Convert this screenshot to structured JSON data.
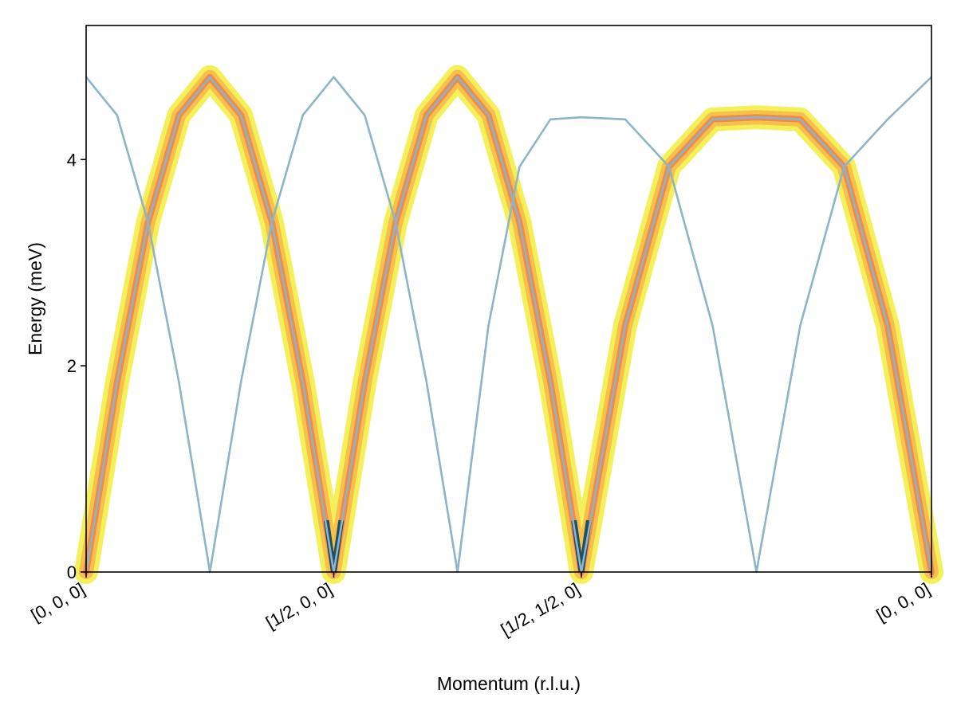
{
  "chart_data": {
    "type": "line",
    "title": "",
    "xlabel": "Momentum (r.l.u.)",
    "ylabel": "Energy (meV)",
    "ylim": [
      0,
      5.3
    ],
    "xlim": [
      0,
      3.414
    ],
    "yticks": [
      0,
      2,
      4
    ],
    "xticks": [
      {
        "value": 0,
        "label": "[0, 0, 0]"
      },
      {
        "value": 1,
        "label": "[1/2, 0, 0]"
      },
      {
        "value": 2,
        "label": "[1/2, 1/2, 0]"
      },
      {
        "value": 3.414,
        "label": "[0, 0, 0]"
      }
    ],
    "grid": false,
    "legend": "none",
    "series": [
      {
        "x": [
          0,
          0.125,
          0.25,
          0.375,
          0.5,
          0.625,
          0.75,
          0.875,
          1.0,
          1.125,
          1.25,
          1.375,
          1.5,
          1.625,
          1.75,
          1.875,
          2.0,
          2.177,
          2.354,
          2.53,
          2.707,
          2.884,
          3.061,
          3.237,
          3.414
        ],
        "y": [
          0,
          1.84,
          3.39,
          4.43,
          4.8,
          4.43,
          3.39,
          1.84,
          0,
          1.84,
          3.39,
          4.43,
          4.8,
          4.43,
          3.39,
          1.84,
          0,
          2.39,
          3.93,
          4.39,
          4.41,
          4.39,
          3.93,
          2.39,
          0
        ],
        "intensity_band": true
      },
      {
        "x": [
          0,
          0.125,
          0.25,
          0.375,
          0.5,
          0.625,
          0.75,
          0.875,
          1.0,
          1.125,
          1.25,
          1.375,
          1.5,
          1.625,
          1.75,
          1.875,
          2.0,
          2.177,
          2.354,
          2.53,
          2.707,
          2.884,
          3.061,
          3.237,
          3.414
        ],
        "y": [
          4.8,
          4.43,
          3.39,
          1.84,
          0,
          1.84,
          3.39,
          4.43,
          4.8,
          4.43,
          3.39,
          1.84,
          0,
          2.39,
          3.93,
          4.39,
          4.41,
          4.39,
          3.93,
          2.39,
          0,
          2.39,
          3.93,
          4.39,
          4.8
        ],
        "intensity_band": false
      }
    ],
    "colors": {
      "line": "#8db4c7",
      "band_outer": "#f4f05a",
      "band_mid": "#f6c04a",
      "band_inner": "#f08a4a",
      "band_core": "#1f4e66"
    }
  }
}
